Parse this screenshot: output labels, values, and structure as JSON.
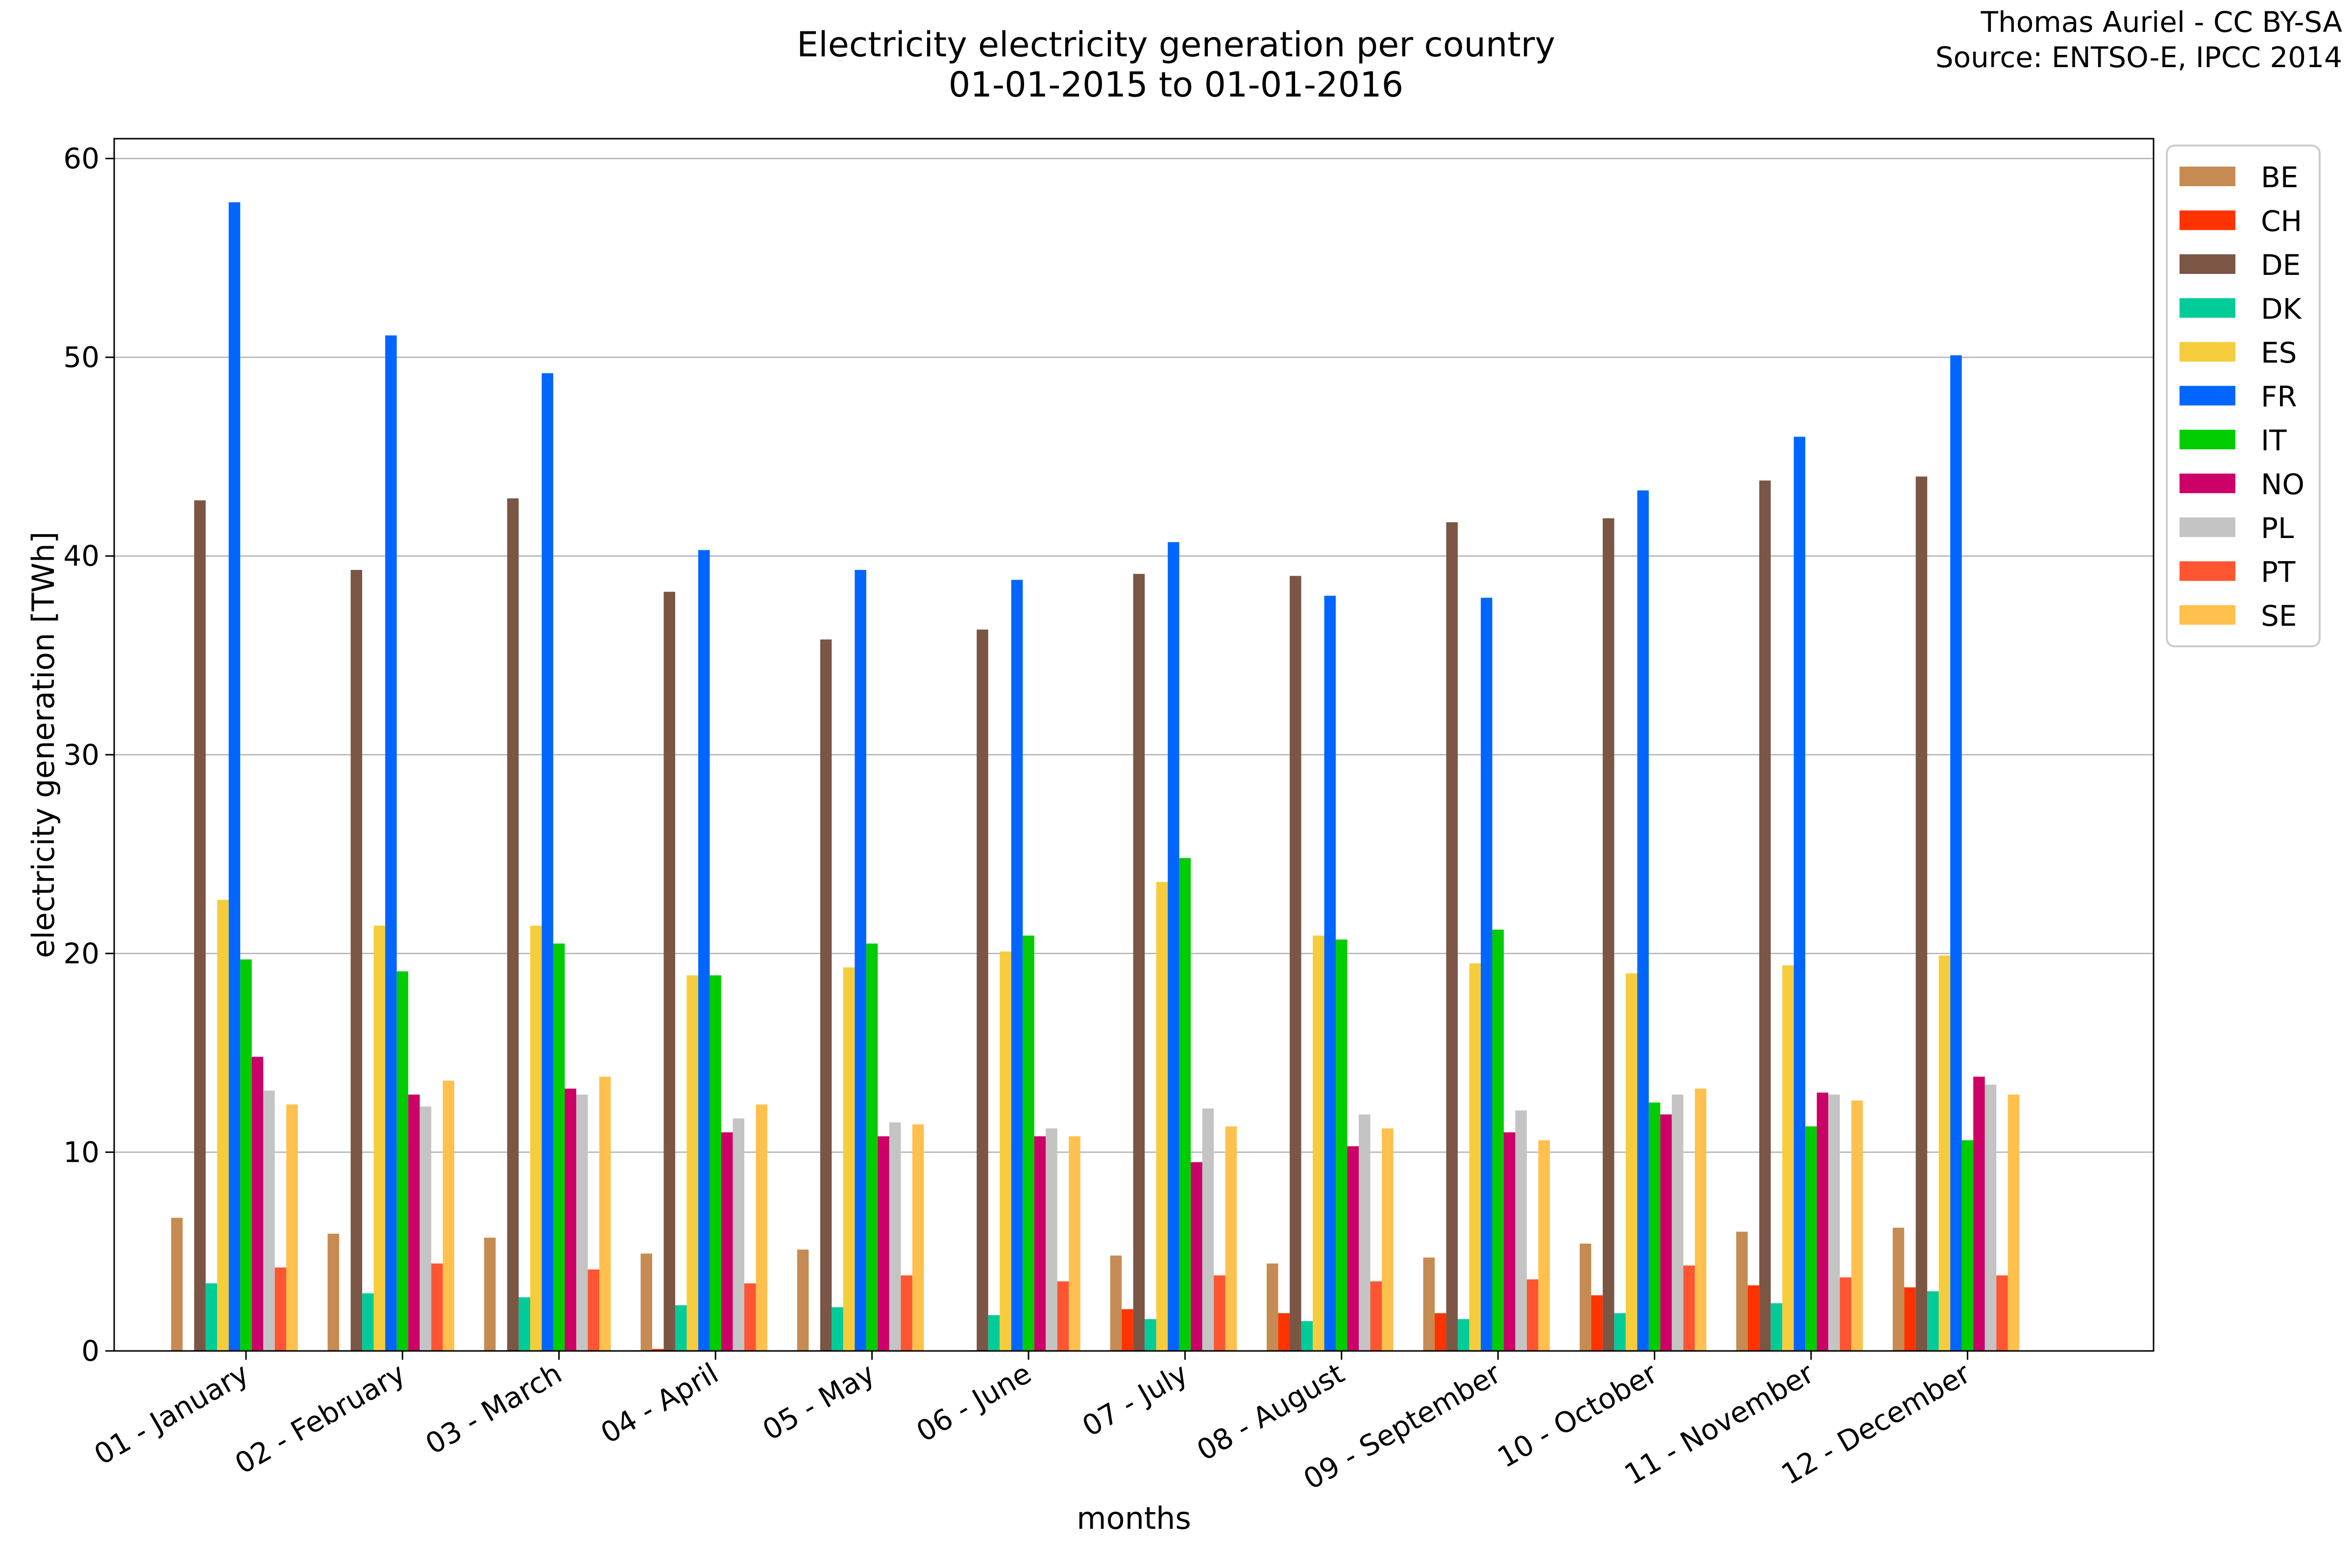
{
  "chart_data": {
    "type": "bar",
    "title": "Electricity electricity generation per country",
    "subtitle": "01-01-2015 to 01-01-2016",
    "credit": [
      "Thomas Auriel - CC BY-SA",
      "Source: ENTSO-E, IPCC 2014"
    ],
    "xlabel": "months",
    "ylabel": "electricity generation [TWh]",
    "ylim": [
      0,
      61
    ],
    "yticks": [
      0,
      10,
      20,
      30,
      40,
      50,
      60
    ],
    "grid": true,
    "legend_position": "top-right",
    "categories": [
      "01 - January",
      "02 - February",
      "03 - March",
      "04 - April",
      "05 - May",
      "06 - June",
      "07 - July",
      "08 - August",
      "09 - September",
      "10 - October",
      "11 - November",
      "12 - December"
    ],
    "series": [
      {
        "name": "BE",
        "color": "#c68b52",
        "values": [
          6.7,
          5.9,
          5.7,
          4.9,
          5.1,
          0.0,
          4.8,
          4.4,
          4.7,
          5.4,
          6.0,
          6.2
        ]
      },
      {
        "name": "CH",
        "color": "#ff3300",
        "values": [
          0.0,
          0.0,
          0.0,
          0.1,
          0.0,
          0.0,
          2.1,
          1.9,
          1.9,
          2.8,
          3.3,
          3.2
        ]
      },
      {
        "name": "DE",
        "color": "#7b5645",
        "values": [
          42.8,
          39.3,
          42.9,
          38.2,
          35.8,
          36.3,
          39.1,
          39.0,
          41.7,
          41.9,
          43.8,
          44.0
        ]
      },
      {
        "name": "DK",
        "color": "#00cc99",
        "values": [
          3.4,
          2.9,
          2.7,
          2.3,
          2.2,
          1.8,
          1.6,
          1.5,
          1.6,
          1.9,
          2.4,
          3.0
        ]
      },
      {
        "name": "ES",
        "color": "#f5cd3c",
        "values": [
          22.7,
          21.4,
          21.4,
          18.9,
          19.3,
          20.1,
          23.6,
          20.9,
          19.5,
          19.0,
          19.4,
          19.9
        ]
      },
      {
        "name": "FR",
        "color": "#0066ff",
        "values": [
          57.8,
          51.1,
          49.2,
          40.3,
          39.3,
          38.8,
          40.7,
          38.0,
          37.9,
          43.3,
          46.0,
          50.1
        ]
      },
      {
        "name": "IT",
        "color": "#00cc00",
        "values": [
          19.7,
          19.1,
          20.5,
          18.9,
          20.5,
          20.9,
          24.8,
          20.7,
          21.2,
          12.5,
          11.3,
          10.6
        ]
      },
      {
        "name": "NO",
        "color": "#cc0066",
        "values": [
          14.8,
          12.9,
          13.2,
          11.0,
          10.8,
          10.8,
          9.5,
          10.3,
          11.0,
          11.9,
          13.0,
          13.8
        ]
      },
      {
        "name": "PL",
        "color": "#c4c4c4",
        "values": [
          13.1,
          12.3,
          12.9,
          11.7,
          11.5,
          11.2,
          12.2,
          11.9,
          12.1,
          12.9,
          12.9,
          13.4
        ]
      },
      {
        "name": "PT",
        "color": "#ff5533",
        "values": [
          4.2,
          4.4,
          4.1,
          3.4,
          3.8,
          3.5,
          3.8,
          3.5,
          3.6,
          4.3,
          3.7,
          3.8
        ]
      },
      {
        "name": "SE",
        "color": "#ffc04d",
        "values": [
          12.4,
          13.6,
          13.8,
          12.4,
          11.4,
          10.8,
          11.3,
          11.2,
          10.6,
          13.2,
          12.6,
          12.9
        ]
      }
    ]
  }
}
